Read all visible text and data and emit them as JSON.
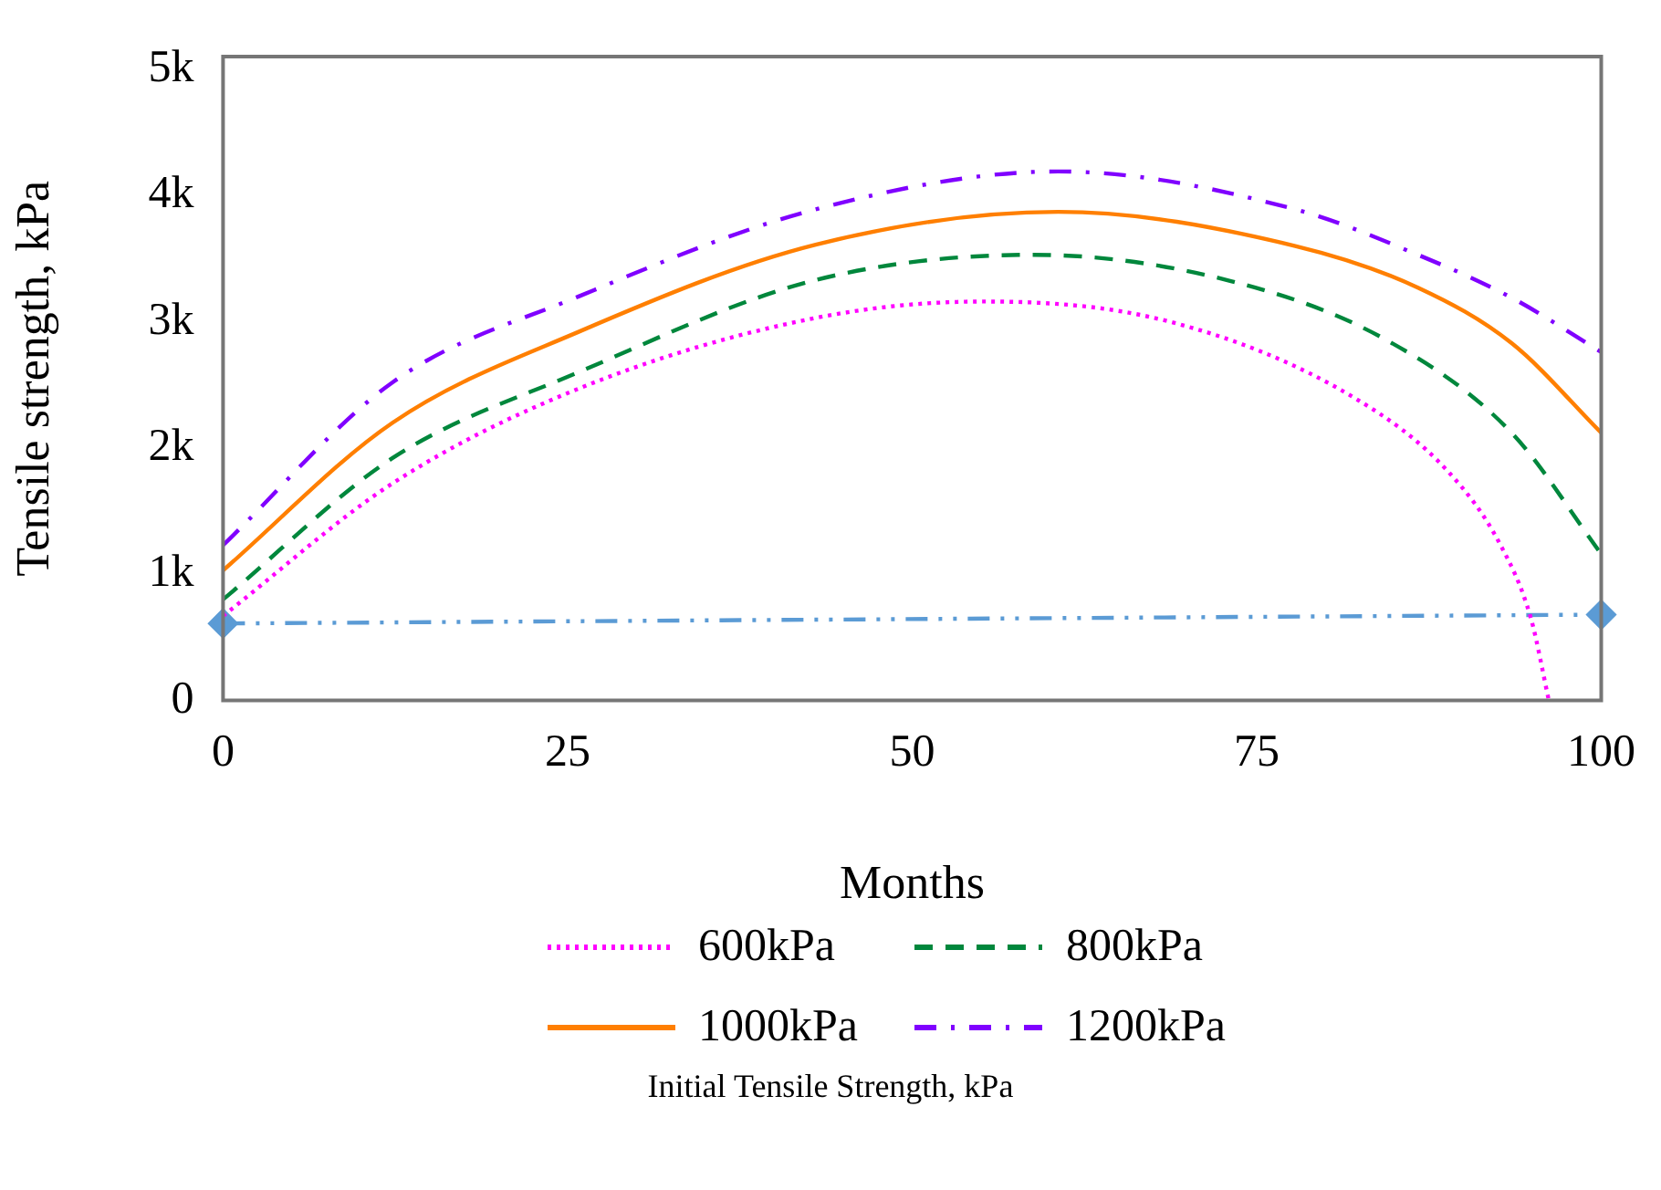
{
  "chart_data": {
    "type": "line",
    "xlabel": "Months",
    "ylabel": "Tensile strength, kPa",
    "legend_title": "Initial Tensile Strength, kPa",
    "legend": "bottom",
    "grid": false,
    "xlim": [
      0,
      100
    ],
    "xticks": [
      0,
      25,
      50,
      75,
      100
    ],
    "ylim": [
      0,
      5100
    ],
    "yticks": [
      {
        "value": 0,
        "label": "0"
      },
      {
        "value": 1000,
        "label": "1k"
      },
      {
        "value": 2000,
        "label": "2k"
      },
      {
        "value": 3000,
        "label": "3k"
      },
      {
        "value": 4000,
        "label": "4k"
      },
      {
        "value": 5000,
        "label": "5k"
      }
    ],
    "series": [
      {
        "name": "600kPa",
        "color": "#ff00ff",
        "line_style": "dotted",
        "marker": "none",
        "x": [
          0,
          12.3,
          25.8,
          43,
          55.2,
          68.7,
          82.2,
          89,
          92.7,
          94.9,
          96.2
        ],
        "values": [
          670,
          1720,
          2470,
          3030,
          3160,
          3000,
          2390,
          1800,
          1230,
          650,
          0
        ]
      },
      {
        "name": "800kPa",
        "color": "#00873c",
        "line_style": "dashed",
        "marker": "none",
        "x": [
          0,
          12.3,
          25.8,
          43,
          58.8,
          73.2,
          84.5,
          93.5,
          100
        ],
        "values": [
          800,
          1920,
          2600,
          3330,
          3530,
          3320,
          2850,
          2120,
          1160
        ]
      },
      {
        "name": "1000kPa",
        "color": "#ff7f00",
        "line_style": "solid",
        "marker": "none",
        "x": [
          0,
          12.3,
          25.8,
          43,
          60.6,
          77.8,
          86.7,
          93.5,
          100
        ],
        "values": [
          1030,
          2200,
          2920,
          3610,
          3870,
          3600,
          3270,
          2830,
          2120
        ]
      },
      {
        "name": "1200kPa",
        "color": "#8000ff",
        "line_style": "dashdot",
        "marker": "none",
        "x": [
          0,
          12.3,
          25.8,
          43,
          60.6,
          77.8,
          86.7,
          93.5,
          100
        ],
        "values": [
          1230,
          2520,
          3200,
          3890,
          4190,
          3890,
          3530,
          3190,
          2760
        ]
      },
      {
        "color": "#5b9bd5",
        "line_style": "dashdotdot",
        "marker": "diamond",
        "x": [
          0,
          100
        ],
        "values": [
          610,
          680
        ]
      }
    ]
  }
}
